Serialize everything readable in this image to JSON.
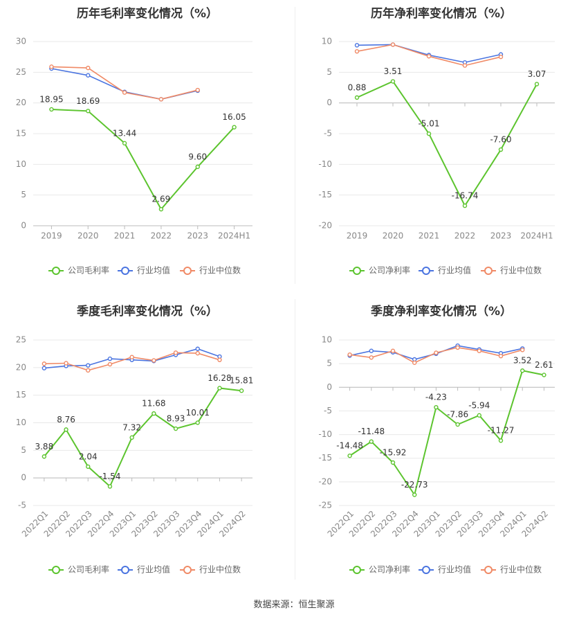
{
  "source_text": "数据来源：恒生聚源",
  "colors": {
    "company": "#5cc42e",
    "avg": "#4a74e0",
    "median": "#f08a66",
    "grid": "#e8e8e8",
    "axis": "#bbbbbb",
    "text": "#888888",
    "title": "#333333"
  },
  "chart_data": [
    {
      "type": "line",
      "title": "历年毛利率变化情况（%）",
      "categories": [
        "2019",
        "2020",
        "2021",
        "2022",
        "2023",
        "2024H1"
      ],
      "ylim": [
        0,
        30
      ],
      "yticks": [
        0,
        5,
        10,
        15,
        20,
        25,
        30
      ],
      "ytick_labels": [
        "0",
        "5",
        "10",
        "15",
        "20",
        "25",
        "30"
      ],
      "series": [
        {
          "name": "公司毛利率",
          "key": "company",
          "values": [
            18.95,
            18.69,
            13.44,
            2.69,
            9.6,
            16.05
          ],
          "labels": [
            "18.95",
            "18.69",
            "13.44",
            "2.69",
            "9.60",
            "16.05"
          ]
        },
        {
          "name": "行业均值",
          "key": "avg",
          "values": [
            25.6,
            24.5,
            21.8,
            20.6,
            22.0,
            null
          ]
        },
        {
          "name": "行业中位数",
          "key": "median",
          "values": [
            25.9,
            25.7,
            21.7,
            20.6,
            22.1,
            null
          ]
        }
      ]
    },
    {
      "type": "line",
      "title": "历年净利率变化情况（%）",
      "categories": [
        "2019",
        "2020",
        "2021",
        "2022",
        "2023",
        "2024H1"
      ],
      "ylim": [
        -20,
        10
      ],
      "yticks": [
        -20,
        -15,
        -10,
        -5,
        0,
        5,
        10
      ],
      "ytick_labels": [
        "-20",
        "-15",
        "-10",
        "-5",
        "0",
        "5",
        "10"
      ],
      "series": [
        {
          "name": "公司净利率",
          "key": "company",
          "values": [
            0.88,
            3.51,
            -5.01,
            -16.74,
            -7.6,
            3.07
          ],
          "labels": [
            "0.88",
            "3.51",
            "-5.01",
            "-16.74",
            "-7.60",
            "3.07"
          ]
        },
        {
          "name": "行业均值",
          "key": "avg",
          "values": [
            9.4,
            9.5,
            7.8,
            6.6,
            7.9,
            null
          ]
        },
        {
          "name": "行业中位数",
          "key": "median",
          "values": [
            8.4,
            9.5,
            7.6,
            6.1,
            7.5,
            null
          ]
        }
      ]
    },
    {
      "type": "line",
      "title": "季度毛利率变化情况（%）",
      "categories": [
        "2022Q1",
        "2022Q2",
        "2022Q3",
        "2022Q4",
        "2023Q1",
        "2023Q2",
        "2023Q3",
        "2023Q4",
        "2024Q1",
        "2024Q2"
      ],
      "ylim": [
        -5,
        25
      ],
      "yticks": [
        -5,
        0,
        5,
        10,
        15,
        20,
        25
      ],
      "ytick_labels": [
        "-5",
        "0",
        "5",
        "10",
        "15",
        "20",
        "25"
      ],
      "series": [
        {
          "name": "公司毛利率",
          "key": "company",
          "values": [
            3.88,
            8.76,
            2.04,
            -1.54,
            7.32,
            11.68,
            8.93,
            10.01,
            16.28,
            15.81
          ],
          "labels": [
            "3.88",
            "8.76",
            "2.04",
            "-1.54",
            "7.32",
            "11.68",
            "8.93",
            "10.01",
            "16.28",
            "15.81"
          ]
        },
        {
          "name": "行业均值",
          "key": "avg",
          "values": [
            19.9,
            20.3,
            20.4,
            21.6,
            21.4,
            21.2,
            22.3,
            23.4,
            22.0,
            null
          ]
        },
        {
          "name": "行业中位数",
          "key": "median",
          "values": [
            20.7,
            20.8,
            19.5,
            20.6,
            21.9,
            21.3,
            22.7,
            22.6,
            21.4,
            null
          ]
        }
      ]
    },
    {
      "type": "line",
      "title": "季度净利率变化情况（%）",
      "categories": [
        "2022Q1",
        "2022Q2",
        "2022Q3",
        "2022Q4",
        "2023Q1",
        "2023Q2",
        "2023Q3",
        "2023Q4",
        "2024Q1",
        "2024Q2"
      ],
      "ylim": [
        -25,
        10
      ],
      "yticks": [
        -25,
        -20,
        -15,
        -10,
        -5,
        0,
        5,
        10
      ],
      "ytick_labels": [
        "-25",
        "-20",
        "-15",
        "-10",
        "-5",
        "0",
        "5",
        "10"
      ],
      "series": [
        {
          "name": "公司净利率",
          "key": "company",
          "values": [
            -14.48,
            -11.48,
            -15.92,
            -22.73,
            -4.23,
            -7.86,
            -5.94,
            -11.27,
            3.52,
            2.61
          ],
          "labels": [
            "-14.48",
            "-11.48",
            "-15.92",
            "-22.73",
            "-4.23",
            "-7.86",
            "-5.94",
            "-11.27",
            "3.52",
            "2.61"
          ]
        },
        {
          "name": "行业均值",
          "key": "avg",
          "values": [
            6.7,
            7.7,
            7.4,
            5.9,
            7.1,
            8.8,
            8.0,
            7.2,
            8.2,
            null
          ]
        },
        {
          "name": "行业中位数",
          "key": "median",
          "values": [
            6.9,
            6.3,
            7.7,
            5.2,
            7.3,
            8.4,
            7.7,
            6.6,
            7.9,
            null
          ]
        }
      ]
    }
  ]
}
